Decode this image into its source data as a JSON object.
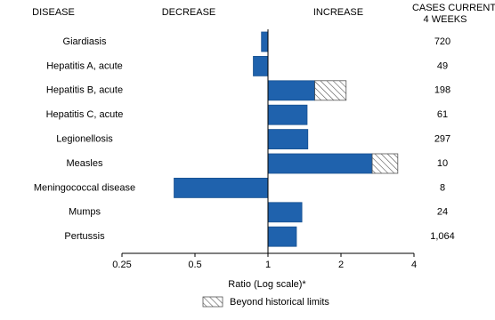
{
  "chart_data": {
    "type": "bar",
    "headers": {
      "disease": "DISEASE",
      "decrease": "DECREASE",
      "increase": "INCREASE",
      "cases": [
        "CASES CURRENT",
        "4 WEEKS"
      ]
    },
    "categories": [
      "Giardiasis",
      "Hepatitis A, acute",
      "Hepatitis B, acute",
      "Hepatitis C, acute",
      "Legionellosis",
      "Measles",
      "Meningococcal disease",
      "Mumps",
      "Pertussis"
    ],
    "values": [
      0.94,
      0.87,
      2.1,
      1.45,
      1.46,
      3.43,
      0.41,
      1.38,
      1.31
    ],
    "historical_limits": [
      null,
      null,
      1.56,
      null,
      null,
      2.69,
      null,
      null,
      null
    ],
    "cases": [
      "720",
      "49",
      "198",
      "61",
      "297",
      "10",
      "8",
      "24",
      "1,064"
    ],
    "color": "#1f62ad",
    "xlim": [
      0.25,
      4
    ],
    "xticks": [
      0.25,
      0.5,
      1,
      2,
      4
    ],
    "log_scale": true,
    "xlabel": "Ratio (Log scale)*",
    "legend": "Beyond historical limits"
  }
}
